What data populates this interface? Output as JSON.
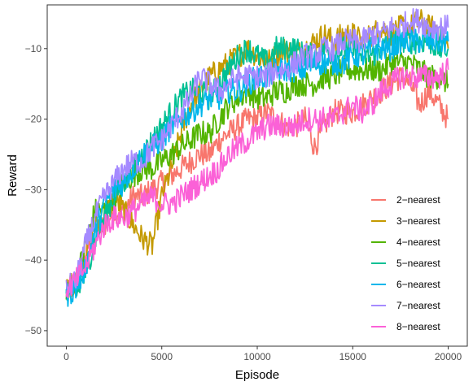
{
  "chart_data": {
    "type": "line",
    "xlabel": "Episode",
    "ylabel": "Reward",
    "xlim": [
      -1000,
      21000
    ],
    "ylim": [
      -52.2,
      -3.8
    ],
    "x_ticks": [
      0,
      5000,
      10000,
      15000,
      20000
    ],
    "x_tick_labels": [
      "0",
      "5000",
      "10000",
      "15000",
      "20000"
    ],
    "y_ticks": [
      -50,
      -40,
      -30,
      -20,
      -10
    ],
    "y_tick_labels": [
      "−50",
      "−40",
      "−30",
      "−20",
      "−10"
    ],
    "grid": false,
    "legend_position": "bottom-right",
    "x": [
      0,
      500,
      1000,
      1500,
      2000,
      2500,
      3000,
      3500,
      4000,
      4500,
      5000,
      5500,
      6000,
      6500,
      7000,
      7500,
      8000,
      8500,
      9000,
      9500,
      10000,
      10500,
      11000,
      11500,
      12000,
      12500,
      13000,
      13500,
      14000,
      14500,
      15000,
      15500,
      16000,
      16500,
      17000,
      17500,
      18000,
      18500,
      19000,
      19500,
      20000
    ],
    "series": [
      {
        "name": "2−nearest",
        "color": "#F8766D",
        "values": [
          -45,
          -44,
          -39,
          -36,
          -35,
          -33,
          -33,
          -31,
          -31,
          -30,
          -29,
          -28,
          -27,
          -26,
          -25,
          -25,
          -23,
          -22,
          -21,
          -20,
          -20,
          -19,
          -20,
          -21,
          -21,
          -20,
          -24,
          -21,
          -19,
          -19,
          -19,
          -18,
          -17,
          -16,
          -15,
          -14,
          -15,
          -18,
          -16,
          -18,
          -20
        ]
      },
      {
        "name": "3−nearest",
        "color": "#C49A00",
        "values": [
          -44,
          -43,
          -39,
          -35,
          -34,
          -31,
          -33,
          -35,
          -37,
          -38,
          -31,
          -27,
          -22,
          -18,
          -16,
          -14,
          -13,
          -12,
          -11,
          -10,
          -11,
          -12,
          -11,
          -10,
          -11,
          -10,
          -9,
          -8,
          -9,
          -8,
          -8,
          -9,
          -8,
          -7,
          -8,
          -7,
          -7,
          -6,
          -7,
          -7,
          -10
        ]
      },
      {
        "name": "4−nearest",
        "color": "#53B400",
        "values": [
          -44,
          -43,
          -38,
          -33,
          -33,
          -31,
          -29,
          -28,
          -27,
          -27,
          -26,
          -25,
          -24,
          -23,
          -22,
          -22,
          -20,
          -18,
          -17,
          -16,
          -17,
          -17,
          -16,
          -16,
          -15,
          -15,
          -15,
          -14,
          -14,
          -13,
          -13,
          -13,
          -13,
          -13,
          -12,
          -12,
          -12,
          -13,
          -14,
          -14,
          -15
        ]
      },
      {
        "name": "5−nearest",
        "color": "#00C094",
        "values": [
          -44,
          -45,
          -42,
          -37,
          -34,
          -31,
          -29,
          -27,
          -25,
          -23,
          -21,
          -19,
          -17,
          -16,
          -16,
          -17,
          -15,
          -13,
          -11,
          -10,
          -11,
          -12,
          -10,
          -10,
          -10,
          -11,
          -11,
          -10,
          -11,
          -10,
          -10,
          -11,
          -11,
          -10,
          -9,
          -9,
          -9,
          -9,
          -9,
          -10,
          -10
        ]
      },
      {
        "name": "6−nearest",
        "color": "#00B6EB",
        "values": [
          -45,
          -44,
          -41,
          -36,
          -32,
          -30,
          -29,
          -27,
          -25,
          -24,
          -23,
          -21,
          -20,
          -19,
          -18,
          -17,
          -17,
          -16,
          -16,
          -15,
          -14,
          -14,
          -13,
          -13,
          -13,
          -13,
          -12,
          -12,
          -12,
          -12,
          -11,
          -11,
          -10,
          -10,
          -10,
          -9,
          -9,
          -9,
          -9,
          -9,
          -9
        ]
      },
      {
        "name": "7−nearest",
        "color": "#A58AFF",
        "values": [
          -44,
          -43,
          -38,
          -34,
          -31,
          -29,
          -27,
          -26,
          -26,
          -24,
          -23,
          -21,
          -19,
          -17,
          -14,
          -15,
          -16,
          -15,
          -14,
          -14,
          -14,
          -14,
          -13,
          -13,
          -12,
          -11,
          -11,
          -10,
          -10,
          -9,
          -9,
          -9,
          -8,
          -8,
          -7,
          -7,
          -6,
          -6,
          -7,
          -7,
          -7
        ]
      },
      {
        "name": "8−nearest",
        "color": "#FB61D7",
        "values": [
          -44,
          -43,
          -41,
          -38,
          -35,
          -34,
          -34,
          -33,
          -32,
          -31,
          -32,
          -32,
          -31,
          -30,
          -29,
          -28,
          -27,
          -25,
          -24,
          -23,
          -22,
          -21,
          -21,
          -21,
          -21,
          -20,
          -20,
          -20,
          -20,
          -19,
          -18,
          -19,
          -18,
          -16,
          -15,
          -14,
          -14,
          -14,
          -14,
          -14,
          -13
        ]
      }
    ]
  }
}
